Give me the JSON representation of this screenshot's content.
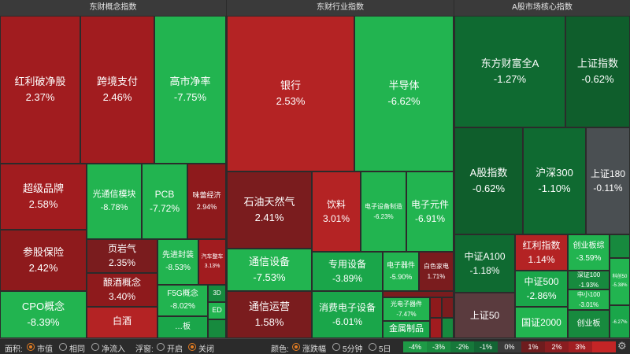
{
  "panels": {
    "concept_title": "东财概念指数",
    "industry_title": "东财行业指数",
    "market_title": "A股市场核心指数"
  },
  "tiles": {
    "hongli_pojing": {
      "name": "红利破净股",
      "chg": "2.37%"
    },
    "kuajing_zhifu": {
      "name": "跨境支付",
      "chg": "2.46%"
    },
    "gaoshi_jinglv": {
      "name": "高市净率",
      "chg": "-7.75%"
    },
    "chaoji_pinpai": {
      "name": "超级品牌",
      "chg": "2.58%"
    },
    "guangtongxin": {
      "name": "光通信模块",
      "chg": "-8.78%"
    },
    "pcb": {
      "name": "PCB",
      "chg": "-7.72%"
    },
    "weilei_jingji": {
      "name": "味蕾经济",
      "chg": "2.94%"
    },
    "canban_baoxian": {
      "name": "参股保险",
      "chg": "2.42%"
    },
    "yeyanqi": {
      "name": "页岩气",
      "chg": "2.35%"
    },
    "xianjin_fengzhuang": {
      "name": "先进封装",
      "chg": "-8.53%"
    },
    "qiche_zhengche": {
      "name": "汽车整车",
      "chg": "3.13%"
    },
    "niangjiu": {
      "name": "酿酒概念",
      "chg": "3.40%"
    },
    "cpo": {
      "name": "CPO概念",
      "chg": "-8.39%"
    },
    "baijiu": {
      "name": "白酒",
      "chg": ""
    },
    "f5g": {
      "name": "F5G概念",
      "chg": "-8.02%"
    },
    "small_3d": {
      "name": "3D",
      "chg": ""
    },
    "small_ed": {
      "name": "ED",
      "chg": ""
    },
    "small_ban": {
      "name": "…板",
      "chg": ""
    },
    "yinhang": {
      "name": "银行",
      "chg": "2.53%"
    },
    "bandaoti": {
      "name": "半导体",
      "chg": "-6.62%"
    },
    "shiyou_tianranqi": {
      "name": "石油天然气",
      "chg": "2.41%"
    },
    "yinliao": {
      "name": "饮料",
      "chg": "3.01%"
    },
    "dianzi_shebei_zhizao": {
      "name": "电子设备制造",
      "chg": "-6.23%"
    },
    "dianzi_yuanjian": {
      "name": "电子元件",
      "chg": "-6.91%"
    },
    "tongxin_shebei": {
      "name": "通信设备",
      "chg": "-7.53%"
    },
    "zhuanyong_shebei": {
      "name": "专用设备",
      "chg": "-3.89%"
    },
    "dianzi_qijian": {
      "name": "电子器件",
      "chg": "-5.90%"
    },
    "baise_jiadian": {
      "name": "白色家电",
      "chg": "1.71%"
    },
    "tongxin_yunying": {
      "name": "通信运营",
      "chg": "1.58%"
    },
    "xiaofei_dianzi": {
      "name": "消费电子设备",
      "chg": "-6.01%"
    },
    "guangdianzi": {
      "name": "光电子器件",
      "chg": "-7.47%"
    },
    "jinshu_zhipin": {
      "name": "金属制品",
      "chg": ""
    },
    "dongfang_caifu": {
      "name": "东方财富全A",
      "chg": "-1.27%"
    },
    "shangzheng": {
      "name": "上证指数",
      "chg": "-0.62%"
    },
    "a_gu": {
      "name": "A股指数",
      "chg": "-0.62%"
    },
    "hushen300": {
      "name": "沪深300",
      "chg": "-1.10%"
    },
    "shangzheng180": {
      "name": "上证180",
      "chg": "-0.11%"
    },
    "zhongzheng_a100": {
      "name": "中证A100",
      "chg": "-1.18%"
    },
    "hongli_zhishu": {
      "name": "红利指数",
      "chg": "1.14%"
    },
    "chuangye_zong": {
      "name": "创业板综",
      "chg": "-3.59%"
    },
    "zhongzheng500": {
      "name": "中证500",
      "chg": "-2.86%"
    },
    "shenzheng100": {
      "name": "深证100",
      "chg": "-1.93%"
    },
    "keji_small": {
      "name": "科创50",
      "chg": "-5.38%"
    },
    "zhongxiao100": {
      "name": "中小100",
      "chg": "-3.01%"
    },
    "shangzheng50": {
      "name": "上证50",
      "chg": ""
    },
    "zhongzheng2000": {
      "name": "国证2000",
      "chg": ""
    },
    "chuangyeban": {
      "name": "创业板",
      "chg": ""
    },
    "right_small": {
      "name": "",
      "chg": "-6.27%"
    }
  },
  "bottom": {
    "area_label": "面积:",
    "area_opts": [
      "市值",
      "相同",
      "净流入"
    ],
    "float_label": "浮窗:",
    "float_opts": [
      "开启",
      "关闭"
    ],
    "color_label": "颜色:",
    "color_opts": [
      "涨跌幅",
      "5分钟",
      "5日"
    ],
    "legend": [
      "-4%",
      "-3%",
      "-2%",
      "-1%",
      "0%",
      "1%",
      "2%",
      "3%",
      ""
    ],
    "legend_colors": [
      "#1e9a46",
      "#1a8a3f",
      "#16783a",
      "#136534",
      "#3a3a3a",
      "#6e1c1e",
      "#8a1d20",
      "#a11f22",
      "#c42526"
    ],
    "gear_icon": "gear-icon"
  }
}
